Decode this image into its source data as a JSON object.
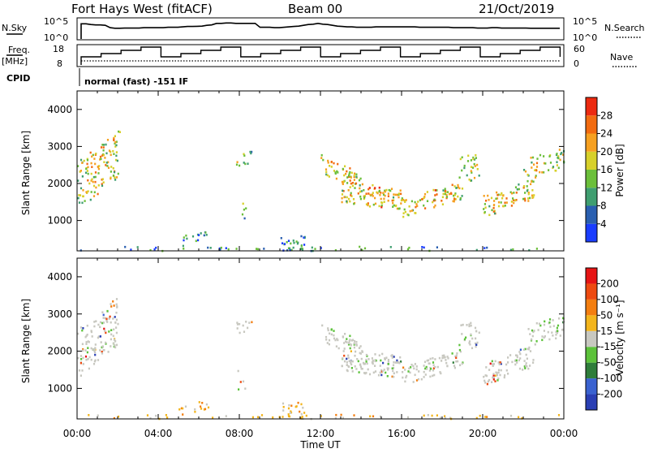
{
  "header": {
    "station": "Fort Hays West (fitACF)",
    "beam": "Beam 00",
    "date": "21/Oct/2019"
  },
  "noise_panel": {
    "left_label": "N.Sky",
    "left_ticks": [
      "10^5",
      "10^0"
    ],
    "right_label": "N.Search",
    "right_ticks": [
      "10^5",
      "10^0"
    ],
    "sky_level": [
      0.78,
      0.78,
      0.74,
      0.72,
      0.72,
      0.7,
      0.58,
      0.55,
      0.55,
      0.56,
      0.56,
      0.56,
      0.56,
      0.58,
      0.58,
      0.58,
      0.58,
      0.58,
      0.6,
      0.6,
      0.6,
      0.62,
      0.64,
      0.64,
      0.65,
      0.66,
      0.7,
      0.72,
      0.8,
      0.8,
      0.82,
      0.82,
      0.8,
      0.8,
      0.8,
      0.8,
      0.8,
      0.6,
      0.6,
      0.6,
      0.58,
      0.58,
      0.6,
      0.62,
      0.64,
      0.66,
      0.7,
      0.74,
      0.76,
      0.8,
      0.76,
      0.74,
      0.7,
      0.66,
      0.64,
      0.62,
      0.62,
      0.6,
      0.6,
      0.6,
      0.6,
      0.62,
      0.62,
      0.62,
      0.62,
      0.62,
      0.62,
      0.62,
      0.62,
      0.62,
      0.6,
      0.6,
      0.6,
      0.6,
      0.6,
      0.6,
      0.6,
      0.58,
      0.58,
      0.58,
      0.58,
      0.58,
      0.56,
      0.56,
      0.56,
      0.58,
      0.58,
      0.56,
      0.56,
      0.56,
      0.56,
      0.56,
      0.56,
      0.55,
      0.55,
      0.55,
      0.55,
      0.55,
      0.55,
      0.55
    ]
  },
  "freq_panel": {
    "left_label": "Freq.",
    "left_unit": "[MHz]",
    "left_ticks": [
      "18",
      "8"
    ],
    "right_label": "Nave",
    "right_ticks": [
      "60",
      "0"
    ]
  },
  "cpid": {
    "label": "CPID",
    "text": "normal (fast) -151 IF"
  },
  "chart_data": [
    {
      "type": "heatmap",
      "name": "power",
      "ylabel": "Slant Range [km]",
      "yticks": [
        "4000",
        "3000",
        "2000",
        "1000"
      ],
      "ylim": [
        180,
        4500
      ],
      "colorbar_label": "Power [dB]",
      "colorbar_ticks": [
        "28",
        "24",
        "20",
        "16",
        "12",
        "8",
        "4"
      ],
      "colors": [
        "#1a3dff",
        "#2a5fb0",
        "#3f9e70",
        "#6bbf3a",
        "#d7d02a",
        "#f6a020",
        "#f26b10",
        "#ec2a10"
      ]
    },
    {
      "type": "heatmap",
      "name": "velocity",
      "xlabel": "Time UT",
      "ylabel": "Slant Range [km]",
      "yticks": [
        "4000",
        "3000",
        "2000",
        "1000"
      ],
      "ylim": [
        180,
        4500
      ],
      "xticks": [
        "00:00",
        "04:00",
        "08:00",
        "12:00",
        "16:00",
        "20:00",
        "00:00"
      ],
      "colorbar_label": "Velocity [m s⁻¹]",
      "colorbar_ticks": [
        "200",
        "100",
        "50",
        "15",
        "-15",
        "-50",
        "-100",
        "-200"
      ],
      "colors": [
        "#2a3fb4",
        "#3a62d0",
        "#2f7d3a",
        "#5cc23a",
        "#c8c8c0",
        "#f3b51c",
        "#f37e10",
        "#ee4a10",
        "#e61414"
      ]
    }
  ],
  "echo_regions": [
    {
      "t": [
        0.0,
        2.0
      ],
      "r": [
        1300,
        2600
      ],
      "slope": 900,
      "strength": 0.7
    },
    {
      "t": [
        1.9,
        2.1
      ],
      "r": [
        3100,
        3500
      ],
      "slope": 0,
      "strength": 0.4
    },
    {
      "t": [
        7.8,
        8.6
      ],
      "r": [
        2500,
        2900
      ],
      "slope": 0,
      "strength": 0.5
    },
    {
      "t": [
        7.9,
        8.3
      ],
      "r": [
        1000,
        1500
      ],
      "slope": 0,
      "strength": 0.4
    },
    {
      "t": [
        12.0,
        14.0
      ],
      "r": [
        2300,
        2800
      ],
      "slope": -500,
      "strength": 0.8
    },
    {
      "t": [
        13.0,
        16.0
      ],
      "r": [
        1500,
        2100
      ],
      "slope": -200,
      "strength": 0.9
    },
    {
      "t": [
        16.0,
        19.0
      ],
      "r": [
        1100,
        1600
      ],
      "slope": 500,
      "strength": 0.8
    },
    {
      "t": [
        18.8,
        19.8
      ],
      "r": [
        2100,
        2800
      ],
      "slope": 0,
      "strength": 0.6
    },
    {
      "t": [
        20.0,
        22.5
      ],
      "r": [
        1100,
        1700
      ],
      "slope": 500,
      "strength": 0.8
    },
    {
      "t": [
        22.0,
        24.0
      ],
      "r": [
        2100,
        2700
      ],
      "slope": 300,
      "strength": 0.6
    },
    {
      "t": [
        5.0,
        6.5
      ],
      "r": [
        300,
        600
      ],
      "slope": 150,
      "strength": 0.5
    },
    {
      "t": [
        10.0,
        11.2
      ],
      "r": [
        200,
        650
      ],
      "slope": 0,
      "strength": 0.7
    },
    {
      "t": [
        0.0,
        24.0
      ],
      "r": [
        200,
        320
      ],
      "slope": 0,
      "strength": 0.25
    }
  ]
}
